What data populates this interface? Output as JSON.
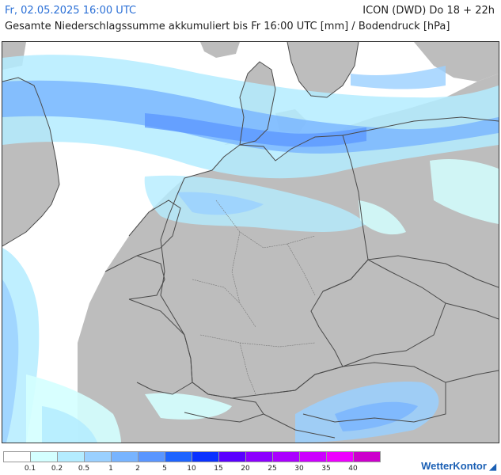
{
  "header": {
    "valid_time": "Fr, 02.05.2025 16:00 UTC",
    "model_run": "ICON (DWD) Do 18 + 22h",
    "subtitle": "Gesamte Niederschlagssumme akkumuliert bis Fr 16:00 UTC [mm] / Bodendruck [hPa]"
  },
  "legend": {
    "colors": [
      "#ffffff",
      "#d4ffff",
      "#b4ecff",
      "#9ad0ff",
      "#78b4ff",
      "#5a96ff",
      "#1e64ff",
      "#0a32ff",
      "#5a00ff",
      "#8c00ff",
      "#aa00ff",
      "#cc00ff",
      "#ee00ff",
      "#cc00cc"
    ],
    "labels": [
      "0.1",
      "0.2",
      "0.5",
      "1",
      "2",
      "5",
      "10",
      "15",
      "20",
      "25",
      "30",
      "35",
      "40"
    ]
  },
  "logo": {
    "text": "WetterKontor"
  },
  "colors": {
    "land": "#bdbdbd",
    "sea": "#ffffff",
    "border": "#4a4a4a"
  }
}
